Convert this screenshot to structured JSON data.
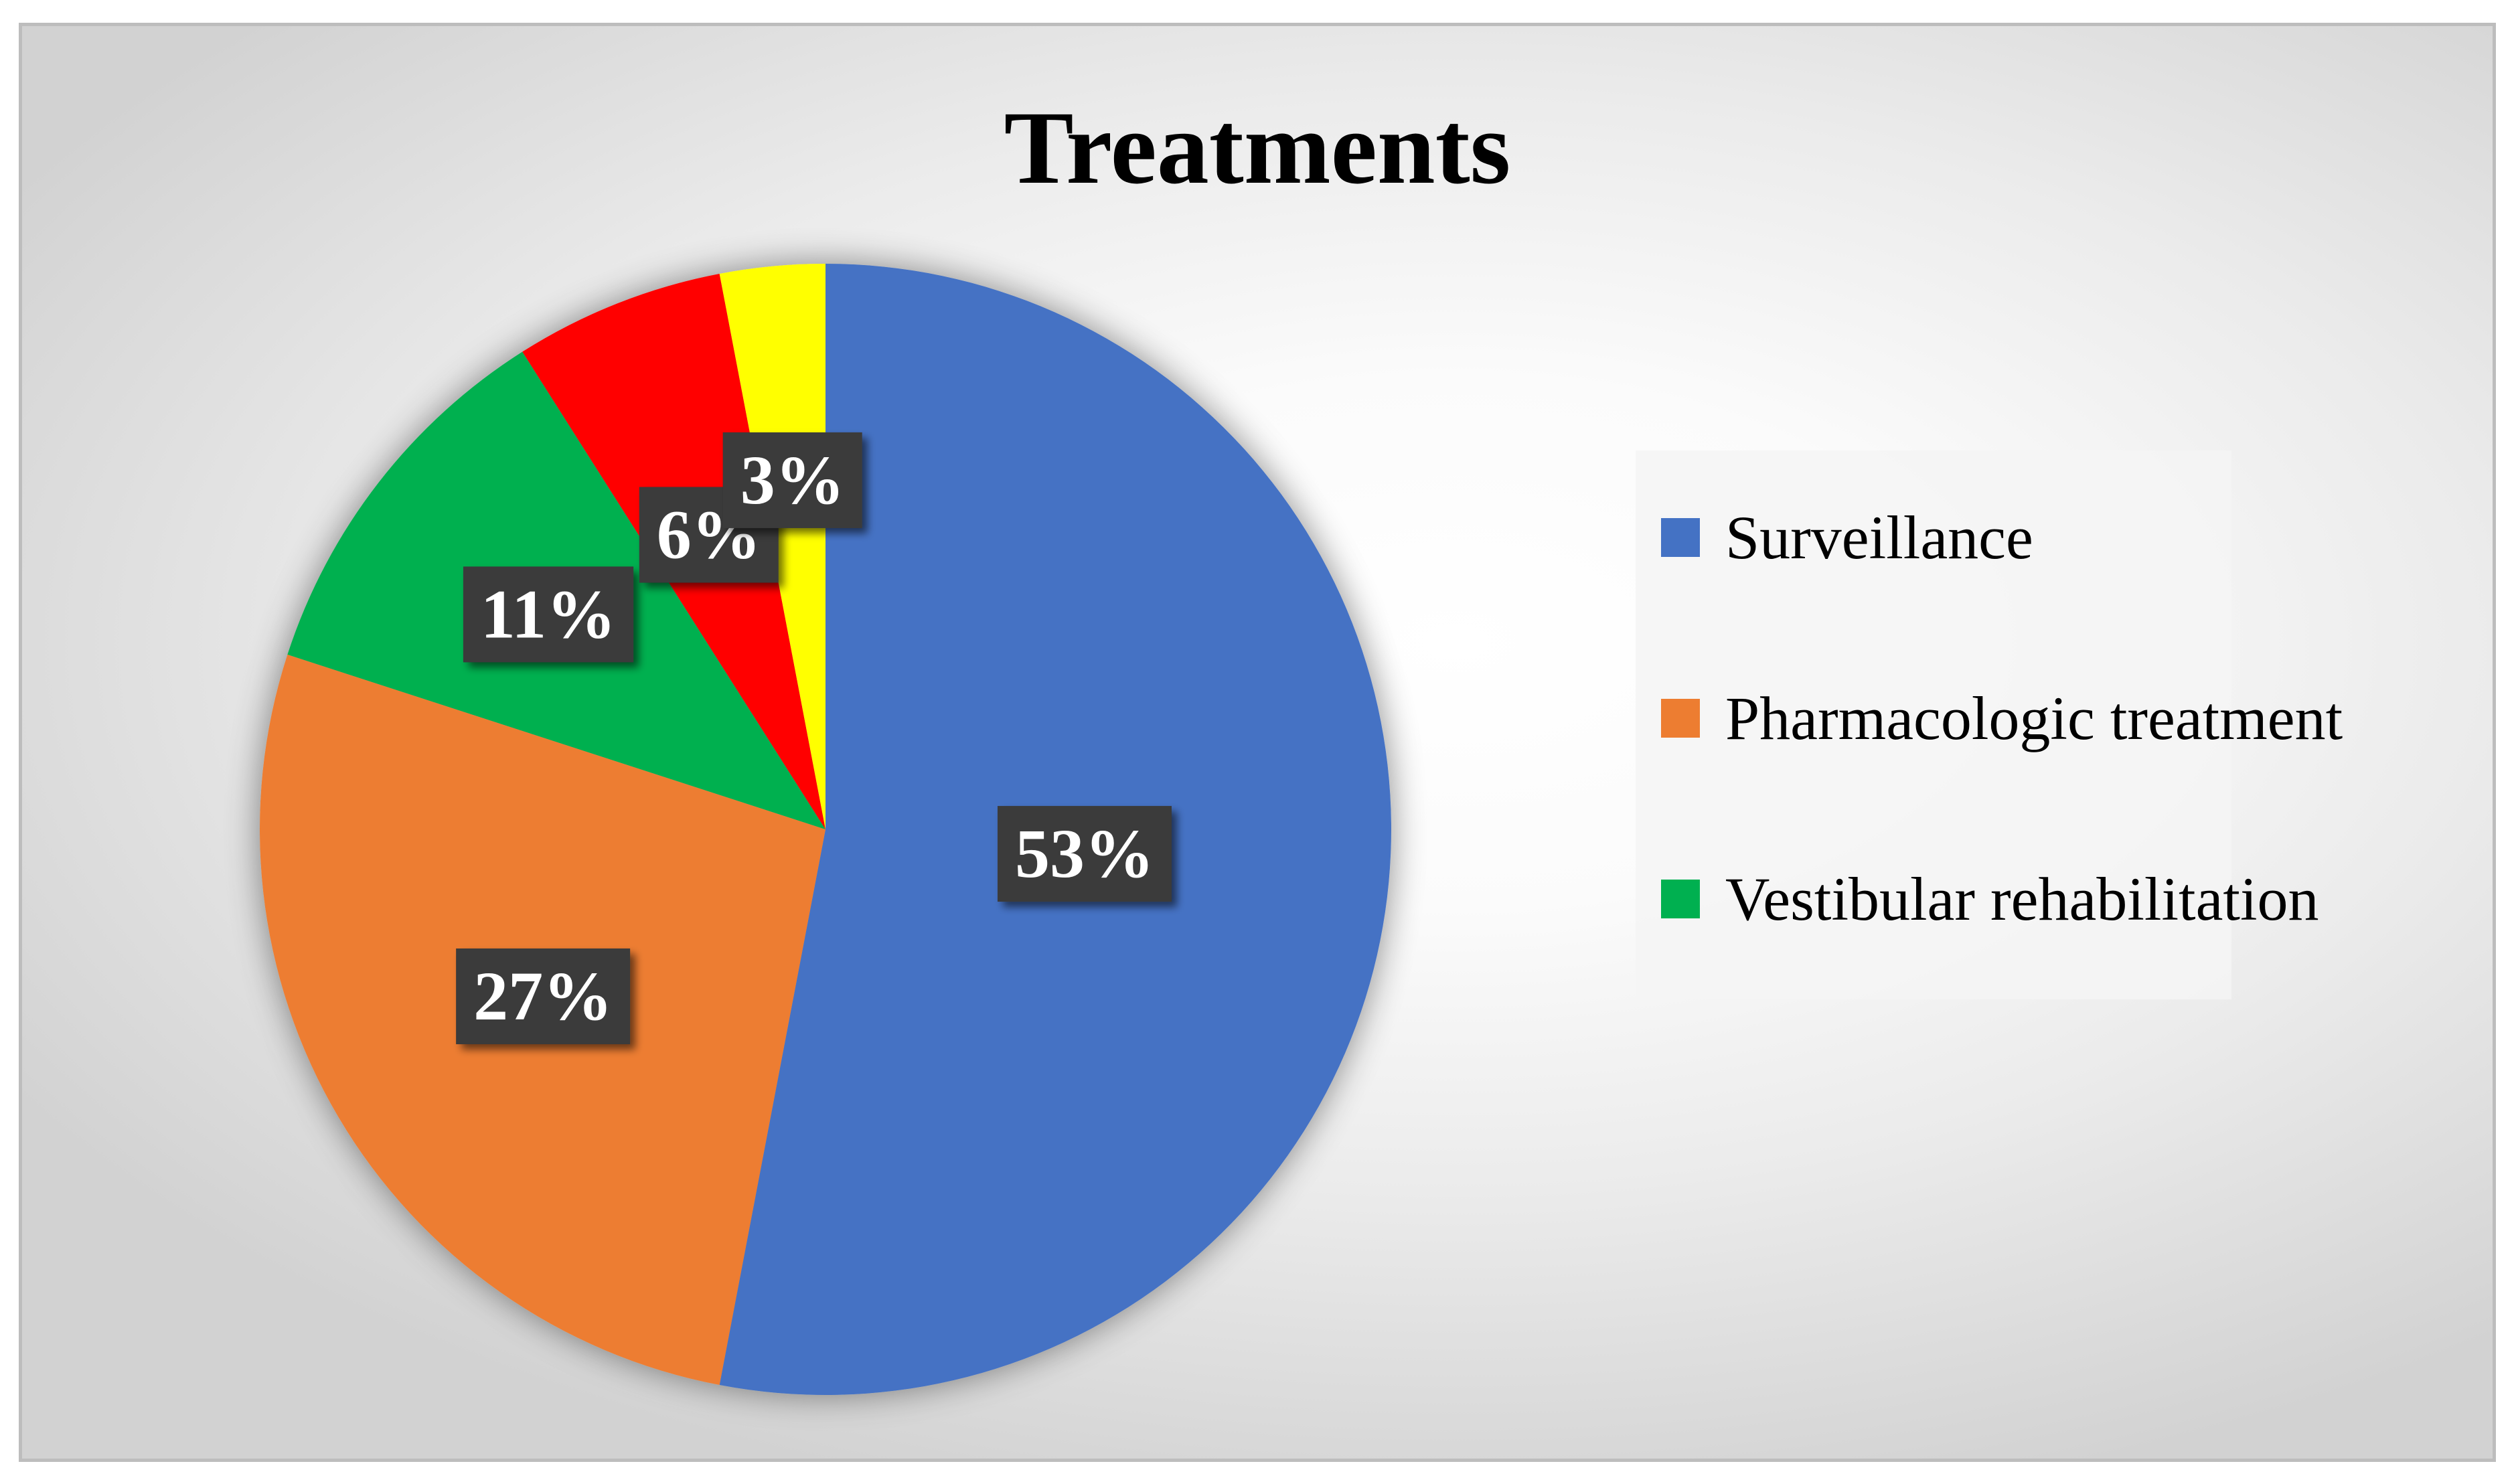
{
  "chart_data": {
    "type": "pie",
    "title": "Treatments",
    "slices": [
      {
        "label": "Surveillance",
        "value": 53,
        "data_label": "53%",
        "color": "#4472C4"
      },
      {
        "label": "Pharmacologic treatment",
        "value": 27,
        "data_label": "27%",
        "color": "#ED7D31"
      },
      {
        "label": "Vestibular rehabilitation",
        "value": 11,
        "data_label": "11%",
        "color": "#00B050"
      },
      {
        "label": "",
        "value": 6,
        "data_label": "6%",
        "color": "#FF0000"
      },
      {
        "label": "",
        "value": 3,
        "data_label": "3%",
        "color": "#FFFF00"
      }
    ],
    "legend": {
      "placement": "right",
      "entries": [
        "Surveillance",
        "Pharmacologic treatment",
        "Vestibular rehabilitation"
      ]
    },
    "label_box_color": "#3a3a3a",
    "label_text_color": "#FFFFFF"
  }
}
